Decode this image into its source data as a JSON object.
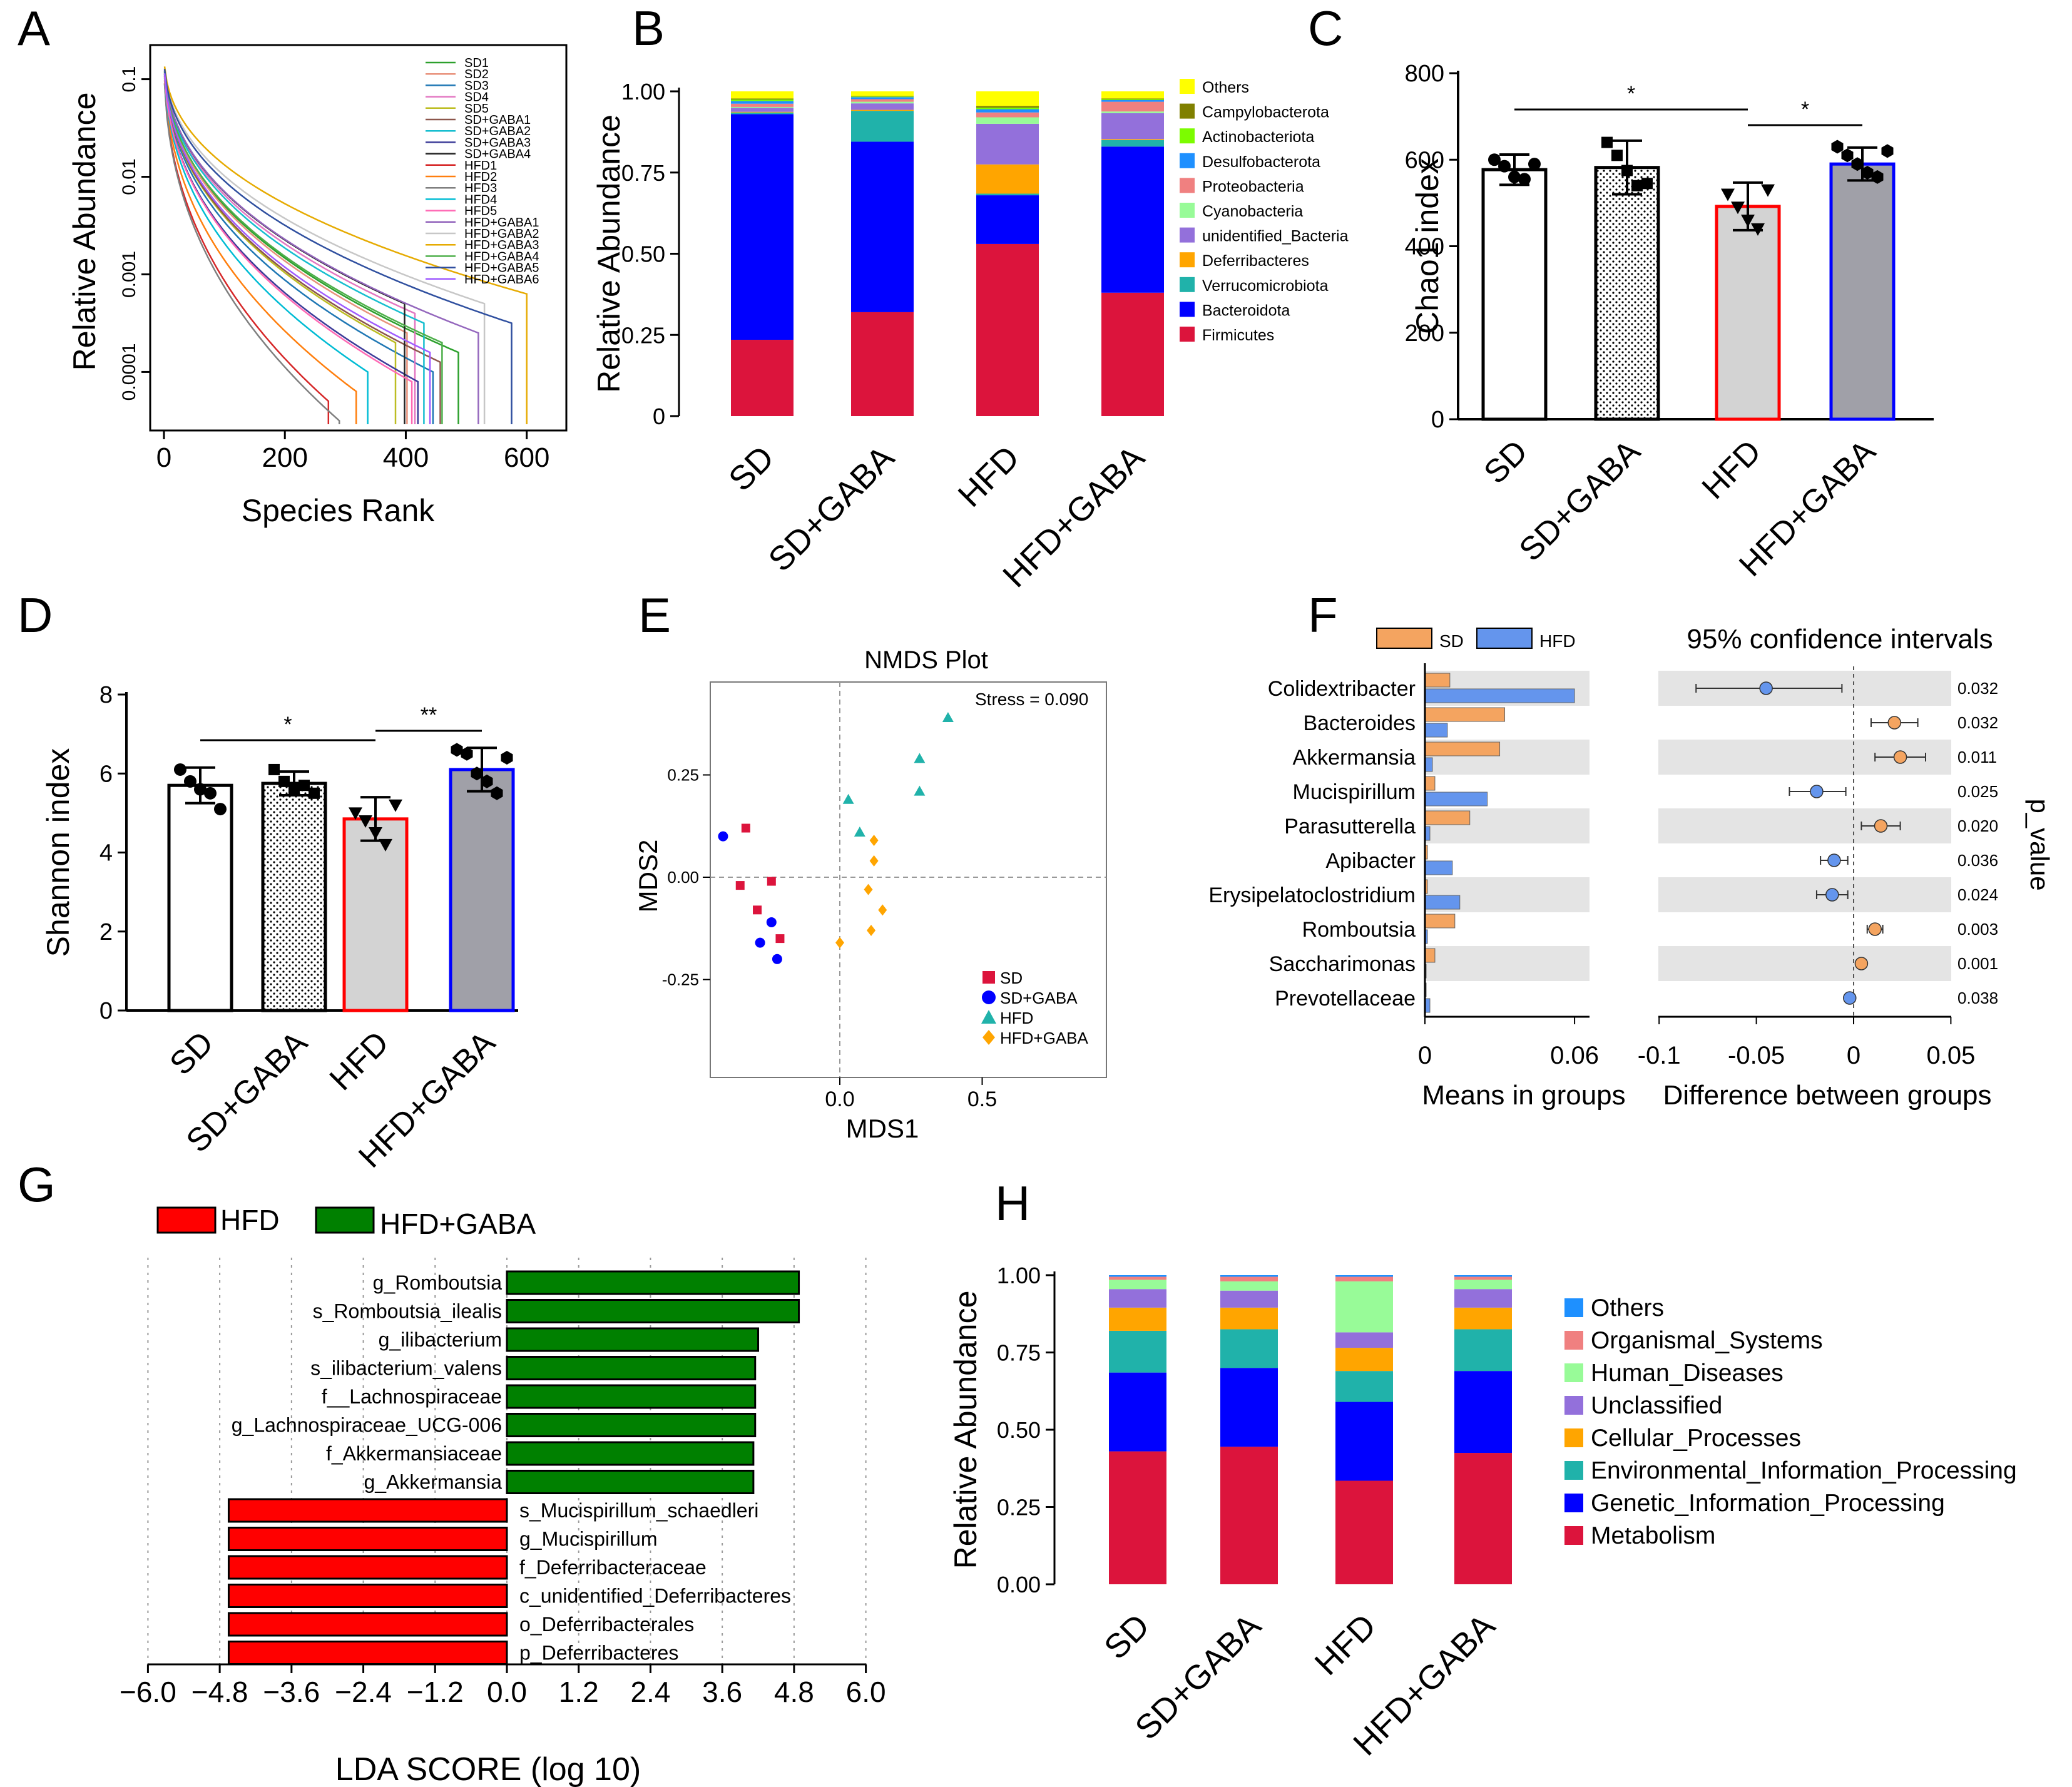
{
  "panel_labels": [
    "A",
    "B",
    "C",
    "D",
    "E",
    "F",
    "G",
    "H"
  ],
  "chart_data": [
    {
      "panel": "A",
      "type": "line",
      "title": "",
      "xlabel": "Species Rank",
      "ylabel": "Relative Abundance",
      "xlim": [
        0,
        650
      ],
      "ylim_log10": [
        -4.6,
        -0.65
      ],
      "xticks": [
        "0",
        "200",
        "400",
        "600"
      ],
      "yticks": [
        "0.1",
        "0.01",
        "0.001",
        "0.0001"
      ],
      "ytick_values": [
        0.1,
        0.01,
        0.001,
        0.0001
      ],
      "series": [
        {
          "name": "SD1",
          "color": "#2ca02c",
          "n": 487,
          "k": 3.1
        },
        {
          "name": "SD2",
          "color": "#e8927c",
          "n": 402,
          "k": 2.9
        },
        {
          "name": "SD3",
          "color": "#1f77b4",
          "n": 445,
          "k": 3.3
        },
        {
          "name": "SD4",
          "color": "#e377c2",
          "n": 415,
          "k": 2.7
        },
        {
          "name": "SD5",
          "color": "#bcbd22",
          "n": 383,
          "k": 3.0
        },
        {
          "name": "SD+GABA1",
          "color": "#8c564b",
          "n": 457,
          "k": 3.2
        },
        {
          "name": "SD+GABA2",
          "color": "#17becf",
          "n": 430,
          "k": 2.8
        },
        {
          "name": "SD+GABA3",
          "color": "#3b3b98",
          "n": 420,
          "k": 3.4
        },
        {
          "name": "SD+GABA4",
          "color": "#222222",
          "n": 398,
          "k": 2.6
        },
        {
          "name": "HFD1",
          "color": "#d62728",
          "n": 272,
          "k": 3.6
        },
        {
          "name": "HFD2",
          "color": "#ff7f0e",
          "n": 318,
          "k": 3.5
        },
        {
          "name": "HFD3",
          "color": "#7f7f7f",
          "n": 290,
          "k": 3.8
        },
        {
          "name": "HFD4",
          "color": "#00bcd4",
          "n": 337,
          "k": 3.3
        },
        {
          "name": "HFD5",
          "color": "#ff69b4",
          "n": 410,
          "k": 3.4
        },
        {
          "name": "HFD+GABA1",
          "color": "#9467bd",
          "n": 520,
          "k": 2.9
        },
        {
          "name": "HFD+GABA2",
          "color": "#c7c7c7",
          "n": 530,
          "k": 2.6
        },
        {
          "name": "HFD+GABA3",
          "color": "#e6ab02",
          "n": 600,
          "k": 2.5
        },
        {
          "name": "HFD+GABA4",
          "color": "#4daf4a",
          "n": 460,
          "k": 3.0
        },
        {
          "name": "HFD+GABA5",
          "color": "#2f4f9f",
          "n": 575,
          "k": 2.8
        },
        {
          "name": "HFD+GABA6",
          "color": "#a05cff",
          "n": 440,
          "k": 3.1
        }
      ]
    },
    {
      "panel": "B",
      "type": "bar",
      "stacked": true,
      "xlabel": "",
      "ylabel": "Relative Abundance",
      "ylim": [
        0,
        1
      ],
      "yticks": [
        "0",
        "0.25",
        "0.50",
        "0.75",
        "1.00"
      ],
      "categories": [
        "SD",
        "SD+GABA",
        "HFD",
        "HFD+GABA"
      ],
      "legend_position": "right",
      "series": [
        {
          "name": "Firmicutes",
          "color": "#dc143c",
          "values": [
            0.235,
            0.32,
            0.53,
            0.38
          ]
        },
        {
          "name": "Bacteroidota",
          "color": "#0000ff",
          "values": [
            0.695,
            0.525,
            0.15,
            0.45
          ]
        },
        {
          "name": "Verrucomicrobiota",
          "color": "#20b2aa",
          "values": [
            0.005,
            0.095,
            0.005,
            0.02
          ]
        },
        {
          "name": "Deferribacteres",
          "color": "#ffa500",
          "values": [
            0.002,
            0.003,
            0.09,
            0.003
          ]
        },
        {
          "name": "unidentified_Bacteria",
          "color": "#9370db",
          "values": [
            0.012,
            0.02,
            0.125,
            0.08
          ]
        },
        {
          "name": "Cyanobacteria",
          "color": "#98fb98",
          "values": [
            0.003,
            0.005,
            0.02,
            0.005
          ]
        },
        {
          "name": "Proteobacteria",
          "color": "#f08080",
          "values": [
            0.01,
            0.008,
            0.015,
            0.03
          ]
        },
        {
          "name": "Desulfobacterota",
          "color": "#1e90ff",
          "values": [
            0.008,
            0.006,
            0.01,
            0.005
          ]
        },
        {
          "name": "Actinobacteriota",
          "color": "#7cfc00",
          "values": [
            0.005,
            0.002,
            0.005,
            0.003
          ]
        },
        {
          "name": "Campylobacterota",
          "color": "#808000",
          "values": [
            0.003,
            0.002,
            0.005,
            0.002
          ]
        },
        {
          "name": "Others",
          "color": "#ffff00",
          "values": [
            0.022,
            0.014,
            0.045,
            0.022
          ]
        }
      ]
    },
    {
      "panel": "C",
      "type": "bar",
      "xlabel": "",
      "ylabel": "Chao1 index",
      "ylim": [
        0,
        800
      ],
      "yticks": [
        "0",
        "200",
        "400",
        "600",
        "800"
      ],
      "categories": [
        "SD",
        "SD+GABA",
        "HFD",
        "HFD+GABA"
      ],
      "values": [
        577,
        582,
        492,
        590
      ],
      "sd": [
        35,
        62,
        55,
        38
      ],
      "points": [
        [
          600,
          585,
          560,
          555,
          590
        ],
        [
          640,
          610,
          575,
          540,
          545
        ],
        [
          520,
          490,
          460,
          440,
          530
        ],
        [
          630,
          610,
          590,
          570,
          560,
          620
        ]
      ],
      "markers": [
        "circle",
        "square",
        "triangle-down",
        "hexagon"
      ],
      "significance": [
        {
          "from": 0,
          "to": 2,
          "label": "*"
        },
        {
          "from": 2,
          "to": 3,
          "label": "*"
        }
      ]
    },
    {
      "panel": "D",
      "type": "bar",
      "xlabel": "",
      "ylabel": "Shannon index",
      "ylim": [
        0,
        8
      ],
      "yticks": [
        "0",
        "2",
        "4",
        "6",
        "8"
      ],
      "categories": [
        "SD",
        "SD+GABA",
        "HFD",
        "HFD+GABA"
      ],
      "values": [
        5.7,
        5.75,
        4.85,
        6.1
      ],
      "sd": [
        0.45,
        0.3,
        0.55,
        0.55
      ],
      "points": [
        [
          6.1,
          5.8,
          5.6,
          5.5,
          5.1
        ],
        [
          6.1,
          5.8,
          5.6,
          5.7,
          5.5
        ],
        [
          5.0,
          4.8,
          4.5,
          4.2,
          5.2
        ],
        [
          6.6,
          6.5,
          6.0,
          5.8,
          5.5,
          6.4
        ]
      ],
      "markers": [
        "circle",
        "square",
        "triangle-down",
        "hexagon"
      ],
      "significance": [
        {
          "from": 0,
          "to": 2,
          "label": "*"
        },
        {
          "from": 2,
          "to": 3,
          "label": "**"
        }
      ]
    },
    {
      "panel": "E",
      "type": "scatter",
      "title": "NMDS Plot",
      "xlabel": "MDS1",
      "ylabel": "MDS2",
      "xlim": [
        -0.45,
        0.92
      ],
      "ylim": [
        -0.48,
        0.45
      ],
      "xticks": [
        "0.0",
        "0.5"
      ],
      "xtick_values": [
        0.0,
        0.5
      ],
      "yticks": [
        "0.25",
        "0.00",
        "-0.25"
      ],
      "ytick_values": [
        0.25,
        0.0,
        -0.25
      ],
      "annotation": "Stress = 0.090",
      "legend_position": "bottom-right",
      "series": [
        {
          "name": "SD",
          "marker": "square",
          "color": "#dc143c",
          "points": [
            [
              -0.33,
              0.12
            ],
            [
              -0.35,
              -0.02
            ],
            [
              -0.29,
              -0.08
            ],
            [
              -0.24,
              -0.01
            ],
            [
              -0.21,
              -0.15
            ]
          ]
        },
        {
          "name": "SD+GABA",
          "marker": "circle",
          "color": "#0000ff",
          "points": [
            [
              -0.41,
              0.1
            ],
            [
              -0.24,
              -0.11
            ],
            [
              -0.28,
              -0.16
            ],
            [
              -0.22,
              -0.2
            ]
          ]
        },
        {
          "name": "HFD",
          "marker": "triangle",
          "color": "#20b2aa",
          "points": [
            [
              0.38,
              0.39
            ],
            [
              0.28,
              0.29
            ],
            [
              0.28,
              0.21
            ],
            [
              0.03,
              0.19
            ],
            [
              0.07,
              0.11
            ]
          ]
        },
        {
          "name": "HFD+GABA",
          "marker": "diamond",
          "color": "#ffa500",
          "points": [
            [
              0.12,
              0.09
            ],
            [
              0.12,
              0.04
            ],
            [
              0.1,
              -0.03
            ],
            [
              0.15,
              -0.08
            ],
            [
              0.11,
              -0.13
            ],
            [
              0.0,
              -0.16
            ]
          ]
        }
      ]
    },
    {
      "panel": "F",
      "type": "bar",
      "orientation": "horizontal",
      "legend": [
        "SD",
        "HFD"
      ],
      "xlabel_left": "Means in groups",
      "xlabel_right": "Difference between groups",
      "title_right": "95% confidence intervals",
      "ylabel_right": "p_value",
      "xlim_left": [
        0,
        0.066
      ],
      "xticks_left": [
        "0",
        "0.06"
      ],
      "xtick_values_left": [
        0,
        0.06
      ],
      "xlim_right": [
        -0.1,
        0.05
      ],
      "xticks_right": [
        "-0.1",
        "-0.05",
        "0",
        "0.05"
      ],
      "xtick_values_right": [
        -0.1,
        -0.05,
        0,
        0.05
      ],
      "categories": [
        "Colidextribacter",
        "Bacteroides",
        "Akkermansia",
        "Mucispirillum",
        "Parasutterella",
        "Apibacter",
        "Erysipelatoclostridium",
        "Romboutsia",
        "Saccharimonas",
        "Prevotellaceae"
      ],
      "series": [
        {
          "name": "SD",
          "color": "#f4a460",
          "values": [
            0.01,
            0.032,
            0.03,
            0.004,
            0.018,
            0.001,
            0.001,
            0.012,
            0.004,
            0.0005
          ]
        },
        {
          "name": "HFD",
          "color": "#6495ed",
          "values": [
            0.06,
            0.009,
            0.003,
            0.025,
            0.002,
            0.011,
            0.014,
            0.001,
            0.0005,
            0.002
          ]
        }
      ],
      "difference": [
        -0.045,
        0.021,
        0.024,
        -0.019,
        0.014,
        -0.01,
        -0.011,
        0.011,
        0.004,
        -0.002
      ],
      "ci_low": [
        -0.081,
        0.009,
        0.011,
        -0.033,
        0.004,
        -0.017,
        -0.019,
        0.007,
        0.002,
        -0.003
      ],
      "ci_high": [
        -0.006,
        0.033,
        0.037,
        -0.004,
        0.024,
        -0.003,
        -0.003,
        0.015,
        0.006,
        -0.001
      ],
      "p_values": [
        "0.032",
        "0.032",
        "0.011",
        "0.025",
        "0.020",
        "0.036",
        "0.024",
        "0.003",
        "0.001",
        "0.038"
      ]
    },
    {
      "panel": "G",
      "type": "bar",
      "orientation": "horizontal",
      "xlabel": "LDA SCORE (log 10)",
      "xlim": [
        -6.0,
        6.0
      ],
      "xticks": [
        "−6.0",
        "−4.8",
        "−3.6",
        "−2.4",
        "−1.2",
        "0.0",
        "1.2",
        "2.4",
        "3.6",
        "4.8",
        "6.0"
      ],
      "xtick_values": [
        -6.0,
        -4.8,
        -3.6,
        -2.4,
        -1.2,
        0,
        1.2,
        2.4,
        3.6,
        4.8,
        6.0
      ],
      "legend": [
        {
          "name": "HFD",
          "color": "#ff0000"
        },
        {
          "name": "HFD+GABA",
          "color": "#008000"
        }
      ],
      "categories": [
        "g_Romboutsia",
        "s_Romboutsia_ilealis",
        "g_ilibacterium",
        "s_ilibacterium_valens",
        "f__Lachnospiraceae",
        "g_Lachnospiraceae_UCG-006",
        "f_Akkermansiaceae",
        "g_Akkermansia",
        "s_Mucispirillum_schaedleri",
        "g_Mucispirillum",
        "f_Deferribacteraceae",
        "c_unidentified_Deferribacteres",
        "o_Deferribacterales",
        "p_Deferribacteres"
      ],
      "values": [
        4.88,
        4.88,
        4.2,
        4.15,
        4.15,
        4.15,
        4.12,
        4.12,
        -4.65,
        -4.65,
        -4.65,
        -4.65,
        -4.65,
        -4.65
      ]
    },
    {
      "panel": "H",
      "type": "bar",
      "stacked": true,
      "xlabel": "",
      "ylabel": "Relative Abundance",
      "ylim": [
        0,
        1
      ],
      "yticks": [
        "0.00",
        "0.25",
        "0.50",
        "0.75",
        "1.00"
      ],
      "categories": [
        "SD",
        "SD+GABA",
        "HFD",
        "HFD+GABA"
      ],
      "legend_position": "right",
      "series": [
        {
          "name": "Metabolism",
          "color": "#dc143c",
          "values": [
            0.43,
            0.445,
            0.335,
            0.425
          ]
        },
        {
          "name": "Genetic_Information_Processing",
          "color": "#0000ff",
          "values": [
            0.255,
            0.255,
            0.255,
            0.265
          ]
        },
        {
          "name": "Environmental_Information_Processing",
          "color": "#20b2aa",
          "values": [
            0.135,
            0.125,
            0.1,
            0.135
          ]
        },
        {
          "name": "Cellular_Processes",
          "color": "#ffa500",
          "values": [
            0.075,
            0.07,
            0.075,
            0.07
          ]
        },
        {
          "name": "Unclassified",
          "color": "#9370db",
          "values": [
            0.06,
            0.055,
            0.05,
            0.06
          ]
        },
        {
          "name": "Human_Diseases",
          "color": "#98fb98",
          "values": [
            0.03,
            0.03,
            0.165,
            0.03
          ]
        },
        {
          "name": "Organismal_Systems",
          "color": "#f08080",
          "values": [
            0.01,
            0.015,
            0.015,
            0.01
          ]
        },
        {
          "name": "Others",
          "color": "#1e90ff",
          "values": [
            0.005,
            0.005,
            0.005,
            0.005
          ]
        }
      ]
    }
  ]
}
